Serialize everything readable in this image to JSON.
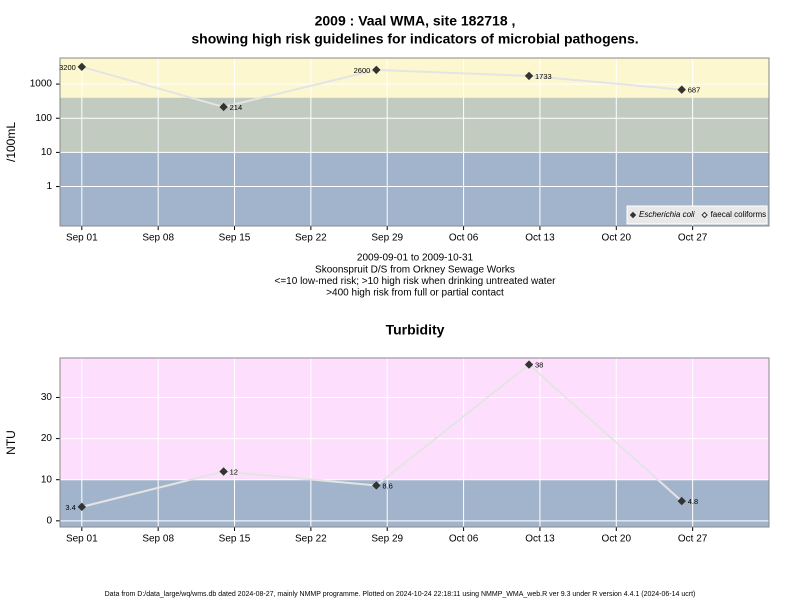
{
  "footer": "Data from D:/data_large/wq/wms.db dated 2024-08-27, mainly NMMP programme. Plotted on 2024-10-24 22:18:11 using NMMP_WMA_web.R ver 9.3 under R version 4.4.1 (2024-06-14 ucrt)",
  "chart_data": [
    {
      "type": "line",
      "title": "2009 : Vaal WMA, site 182718 ,",
      "subtitle": "showing high risk guidelines for indicators of microbial pathogens.",
      "y_label": "/100mL",
      "log_y": true,
      "x": [
        "2009-09-01",
        "2009-09-14",
        "2009-09-28",
        "2009-10-12",
        "2009-10-26"
      ],
      "series": [
        {
          "name": "Escherichia coli",
          "color": "#333333",
          "marker": "filled",
          "values": [
            3200,
            214,
            2600,
            1733,
            687
          ]
        },
        {
          "name": "faecal coliforms",
          "color": "#333333",
          "marker": "open",
          "values": [
            null,
            null,
            null,
            null,
            null
          ]
        }
      ],
      "line_color": "#e4e4e4",
      "xlim": [
        "2009-08-30",
        "2009-11-03"
      ],
      "xticks": [
        {
          "value": "2009-09-01",
          "label": "Sep 01"
        },
        {
          "value": "2009-09-08",
          "label": "Sep 08"
        },
        {
          "value": "2009-09-15",
          "label": "Sep 15"
        },
        {
          "value": "2009-09-22",
          "label": "Sep 22"
        },
        {
          "value": "2009-09-29",
          "label": "Sep 29"
        },
        {
          "value": "2009-10-06",
          "label": "Oct 06"
        },
        {
          "value": "2009-10-13",
          "label": "Oct 13"
        },
        {
          "value": "2009-10-20",
          "label": "Oct 20"
        },
        {
          "value": "2009-10-27",
          "label": "Oct 27"
        }
      ],
      "ylim": [
        0.07,
        5800
      ],
      "yticks": [
        1,
        10,
        100,
        1000
      ],
      "thresholds": [
        10,
        400
      ],
      "band_colors": [
        "#a2b4cc",
        "#c2cbbf",
        "#fdf7cf"
      ],
      "grid": true,
      "legend": "bottom right",
      "notes": [
        "2009-09-01 to 2009-10-31",
        "Skoonspruit D/S from Orkney Sewage Works",
        "<=10 low-med risk; >10 high risk when drinking untreated water",
        ">400 high risk from full or partial contact"
      ]
    },
    {
      "type": "line",
      "title": "Turbidity",
      "y_label": "NTU",
      "log_y": false,
      "x": [
        "2009-09-01",
        "2009-09-14",
        "2009-09-28",
        "2009-10-12",
        "2009-10-26"
      ],
      "series": [
        {
          "name": "Turbidity",
          "color": "#333333",
          "marker": "filled",
          "values": [
            3.4,
            12,
            8.6,
            38,
            4.8
          ]
        }
      ],
      "line_color": "#e4e4e4",
      "xlim": [
        "2009-08-30",
        "2009-11-03"
      ],
      "xticks": [
        {
          "value": "2009-09-01",
          "label": "Sep 01"
        },
        {
          "value": "2009-09-08",
          "label": "Sep 08"
        },
        {
          "value": "2009-09-15",
          "label": "Sep 15"
        },
        {
          "value": "2009-09-22",
          "label": "Sep 22"
        },
        {
          "value": "2009-09-29",
          "label": "Sep 29"
        },
        {
          "value": "2009-10-06",
          "label": "Oct 06"
        },
        {
          "value": "2009-10-13",
          "label": "Oct 13"
        },
        {
          "value": "2009-10-20",
          "label": "Oct 20"
        },
        {
          "value": "2009-10-27",
          "label": "Oct 27"
        }
      ],
      "ylim": [
        -1.5,
        39.6
      ],
      "yticks": [
        0,
        10,
        20,
        30
      ],
      "thresholds": [
        10
      ],
      "band_colors": [
        "#a2b4cc",
        "#fddffd"
      ],
      "grid": true
    }
  ]
}
